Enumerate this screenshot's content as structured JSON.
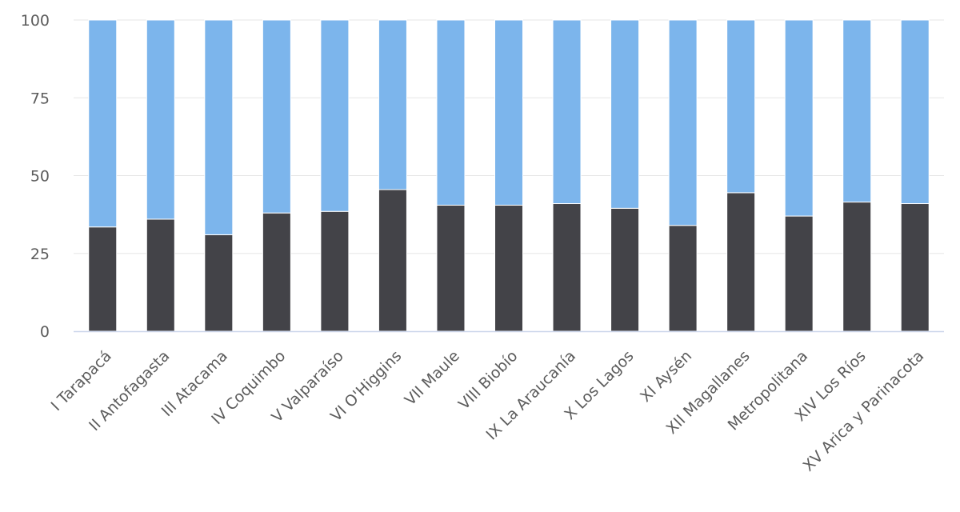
{
  "chart_data": {
    "type": "bar",
    "stacked": true,
    "categories": [
      "I Tarapacá",
      "II Antofagasta",
      "III Atacama",
      "IV Coquimbo",
      "V Valparaíso",
      "VI O'Higgins",
      "VII Maule",
      "VIII Biobío",
      "IX La Araucanía",
      "X Los Lagos",
      "XI Aysén",
      "XII Magallanes",
      "Metropolitana",
      "XIV Los Ríos",
      "XV Arica y Parinacota"
    ],
    "series": [
      {
        "color": "#434348",
        "values": [
          33.5,
          36,
          31,
          38,
          38.5,
          45.5,
          40.5,
          40.5,
          41,
          39.5,
          34,
          44.5,
          37,
          41.5,
          41
        ]
      },
      {
        "color": "#7cb5ec",
        "values": [
          66.5,
          64,
          69,
          62,
          61.5,
          54.5,
          59.5,
          59.5,
          59,
          60.5,
          66,
          55.5,
          63,
          58.5,
          59
        ]
      }
    ],
    "yticks": [
      "0",
      "25",
      "50",
      "75",
      "100"
    ],
    "ylim": [
      0,
      100
    ],
    "grid": true,
    "legend": "none",
    "title": "",
    "xlabel": "",
    "ylabel": ""
  }
}
